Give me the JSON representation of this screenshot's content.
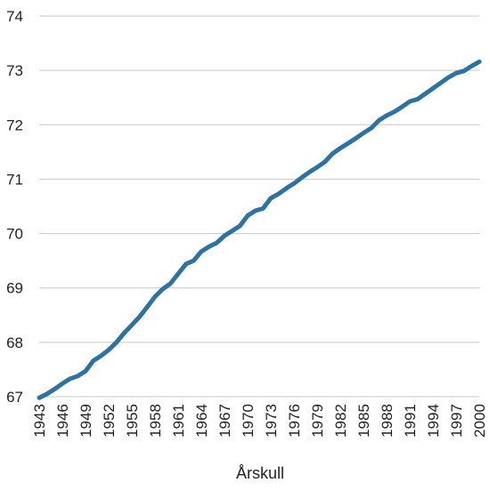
{
  "chart_data": {
    "type": "line",
    "title": "",
    "xlabel": "Årskull",
    "ylabel": "",
    "x": [
      1943,
      1944,
      1945,
      1946,
      1947,
      1948,
      1949,
      1950,
      1951,
      1952,
      1953,
      1954,
      1955,
      1956,
      1957,
      1958,
      1959,
      1960,
      1961,
      1962,
      1963,
      1964,
      1965,
      1966,
      1967,
      1968,
      1969,
      1970,
      1971,
      1972,
      1973,
      1974,
      1975,
      1976,
      1977,
      1978,
      1979,
      1980,
      1981,
      1982,
      1983,
      1984,
      1985,
      1986,
      1987,
      1988,
      1989,
      1990,
      1991,
      1992,
      1993,
      1994,
      1995,
      1996,
      1997,
      1998,
      1999,
      2000
    ],
    "series": [
      {
        "values": [
          66.98,
          67.05,
          67.14,
          67.24,
          67.33,
          67.38,
          67.47,
          67.66,
          67.75,
          67.86,
          68.0,
          68.17,
          68.32,
          68.47,
          68.65,
          68.84,
          68.98,
          69.08,
          69.26,
          69.44,
          69.5,
          69.67,
          69.76,
          69.83,
          69.96,
          70.05,
          70.14,
          70.33,
          70.42,
          70.46,
          70.65,
          70.73,
          70.83,
          70.92,
          71.03,
          71.13,
          71.22,
          71.32,
          71.47,
          71.57,
          71.66,
          71.75,
          71.85,
          71.94,
          72.08,
          72.17,
          72.24,
          72.33,
          72.43,
          72.47,
          72.57,
          72.67,
          72.77,
          72.87,
          72.95,
          72.99,
          73.08,
          73.16
        ]
      }
    ],
    "x_tick_labels": [
      "1943",
      "1946",
      "1949",
      "1952",
      "1955",
      "1958",
      "1961",
      "1964",
      "1967",
      "1970",
      "1973",
      "1976",
      "1979",
      "1982",
      "1985",
      "1988",
      "1991",
      "1994",
      "1997",
      "2000"
    ],
    "y_ticks": [
      67,
      68,
      69,
      70,
      71,
      72,
      73,
      74
    ],
    "ylim": [
      67,
      74
    ],
    "xlim": [
      1943,
      2000
    ],
    "grid": "horizontal",
    "legend": "none",
    "colors": {
      "line": "#2e72a4",
      "grid": "#c8c8c8"
    }
  }
}
